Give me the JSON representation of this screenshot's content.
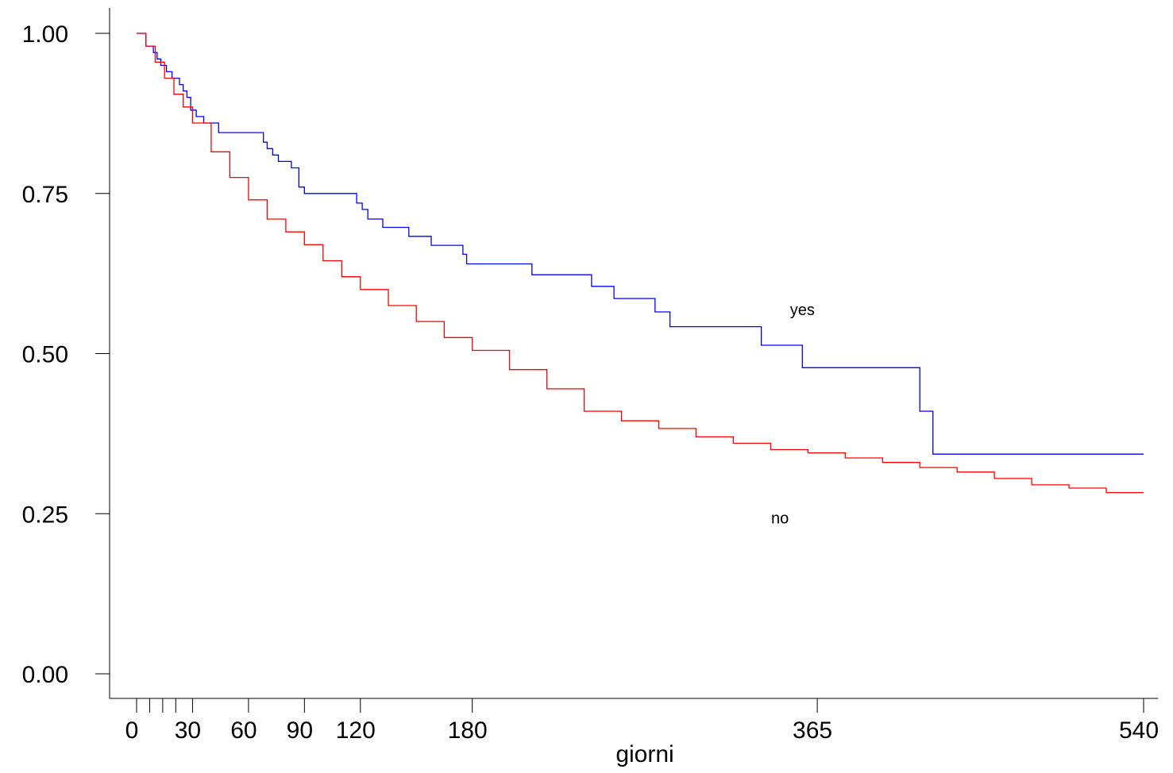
{
  "chart_data": {
    "type": "line",
    "step": true,
    "title": "",
    "xlabel": "giorni",
    "ylabel": "",
    "xlim": [
      0,
      540
    ],
    "ylim": [
      0,
      1
    ],
    "x_ticks": [
      0,
      30,
      60,
      90,
      120,
      180,
      365,
      540
    ],
    "x_minor_ticks": [
      7,
      14,
      21
    ],
    "y_ticks": [
      "0.00",
      "0.25",
      "0.50",
      "0.75",
      "1.00"
    ],
    "grid": false,
    "legend": "none",
    "annotations": [
      {
        "text": "yes",
        "x": 357,
        "y": 0.56
      },
      {
        "text": "no",
        "x": 345,
        "y": 0.235
      }
    ],
    "series": [
      {
        "name": "yes",
        "color": "#0000ff",
        "x": [
          0,
          5,
          9,
          11,
          13,
          16,
          19,
          23,
          25,
          27,
          29,
          32,
          36,
          44,
          68,
          70,
          73,
          76,
          83,
          87,
          90,
          118,
          121,
          124,
          132,
          146,
          158,
          175,
          177,
          212,
          244,
          256,
          278,
          286,
          335,
          357,
          420,
          427,
          540
        ],
        "y": [
          1.0,
          0.98,
          0.97,
          0.96,
          0.95,
          0.94,
          0.93,
          0.92,
          0.91,
          0.9,
          0.88,
          0.87,
          0.86,
          0.845,
          0.83,
          0.82,
          0.81,
          0.8,
          0.79,
          0.76,
          0.75,
          0.735,
          0.725,
          0.71,
          0.697,
          0.683,
          0.669,
          0.655,
          0.64,
          0.623,
          0.605,
          0.586,
          0.565,
          0.542,
          0.513,
          0.478,
          0.41,
          0.343,
          0.343
        ]
      },
      {
        "name": "no",
        "color": "#ff0000",
        "x": [
          0,
          5,
          10,
          15,
          20,
          25,
          30,
          40,
          50,
          60,
          70,
          80,
          90,
          100,
          110,
          120,
          135,
          150,
          165,
          180,
          200,
          220,
          240,
          260,
          280,
          300,
          320,
          340,
          360,
          380,
          400,
          420,
          440,
          460,
          480,
          500,
          520,
          540
        ],
        "y": [
          1.0,
          0.98,
          0.955,
          0.93,
          0.905,
          0.885,
          0.86,
          0.815,
          0.775,
          0.74,
          0.71,
          0.69,
          0.67,
          0.645,
          0.62,
          0.6,
          0.575,
          0.55,
          0.525,
          0.505,
          0.475,
          0.445,
          0.41,
          0.395,
          0.383,
          0.37,
          0.36,
          0.35,
          0.345,
          0.337,
          0.33,
          0.322,
          0.315,
          0.305,
          0.295,
          0.29,
          0.283,
          0.283
        ]
      }
    ]
  }
}
